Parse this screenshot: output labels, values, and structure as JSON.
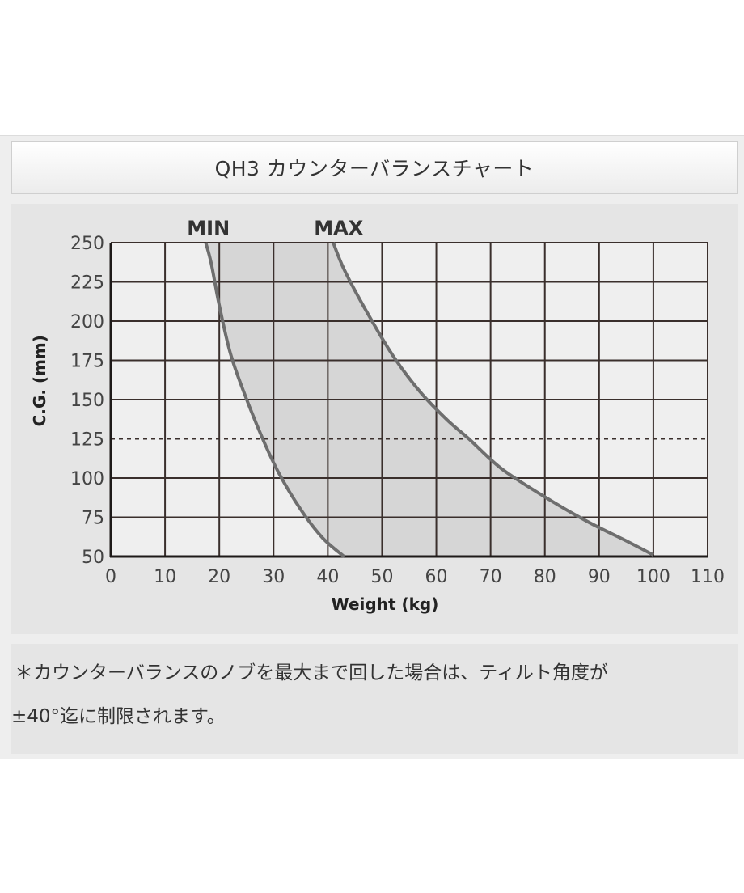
{
  "title": "QH3 カウンターバランスチャート",
  "note": {
    "line1": "＊カウンターバランスのノブを最大まで回した場合は、ティルト角度が",
    "line2": "±40°迄に制限されます。"
  },
  "colors": {
    "grid": "#3a2f2c",
    "curve": "#6e6e6e",
    "fill": "#d6d6d6",
    "plot_bg": "#efefef"
  },
  "chart_data": {
    "type": "area",
    "xlabel": "Weight (kg)",
    "ylabel": "C.G. (mm)",
    "xlim": [
      0,
      110
    ],
    "ylim": [
      50,
      250
    ],
    "x_ticks": [
      0,
      10,
      20,
      30,
      40,
      50,
      60,
      70,
      80,
      90,
      100,
      110
    ],
    "y_ticks": [
      50,
      75,
      100,
      125,
      150,
      175,
      200,
      225,
      250
    ],
    "grid": true,
    "reference_line": {
      "y": 125,
      "style": "dashed"
    },
    "shaded_region": "between MIN and MAX",
    "series": [
      {
        "name": "MIN",
        "points": [
          [
            17.5,
            250
          ],
          [
            18.5,
            237
          ],
          [
            20,
            210
          ],
          [
            22,
            180
          ],
          [
            24.5,
            155
          ],
          [
            28,
            125
          ],
          [
            31,
            103
          ],
          [
            35,
            80
          ],
          [
            39,
            62
          ],
          [
            43,
            50
          ]
        ]
      },
      {
        "name": "MAX",
        "points": [
          [
            41,
            250
          ],
          [
            43,
            233
          ],
          [
            47,
            207
          ],
          [
            52,
            178
          ],
          [
            57,
            155
          ],
          [
            62,
            137
          ],
          [
            66,
            125
          ],
          [
            72,
            106
          ],
          [
            80,
            88
          ],
          [
            88,
            72
          ],
          [
            95,
            60
          ],
          [
            100,
            51
          ]
        ]
      }
    ]
  }
}
